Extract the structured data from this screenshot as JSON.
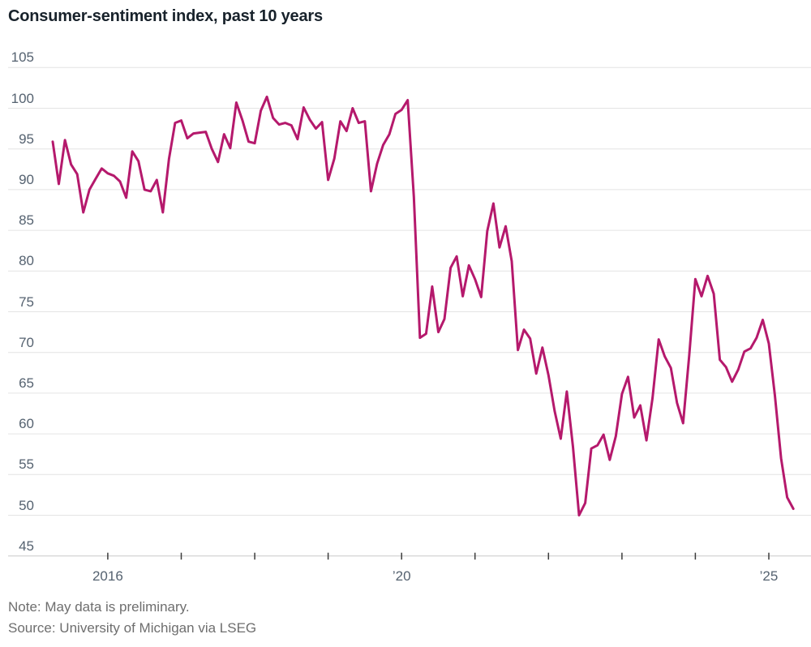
{
  "title": "Consumer-sentiment index, past 10 years",
  "note": "Note: May data is preliminary.",
  "source": "Source: University of Michigan via LSEG",
  "colors": {
    "line": "#b5196c",
    "gridline": "#e4e4e4",
    "axis_line": "#c9c9c9",
    "tick_mark": "#3c3c3c",
    "tick_label": "#556270",
    "title_text": "#18222b",
    "note_text": "#6e6e6e",
    "background": "#ffffff"
  },
  "chart_data": {
    "type": "line",
    "title": "Consumer-sentiment index, past 10 years",
    "series_name": "Consumer-sentiment index",
    "frequency": "monthly",
    "x_start": "2015-04",
    "x_end": "2025-05",
    "note": "May 2025 data is preliminary",
    "ylim": [
      45,
      105
    ],
    "y_ticks": [
      105,
      100,
      95,
      90,
      85,
      80,
      75,
      70,
      65,
      60,
      55,
      50,
      45
    ],
    "x_tick_years": [
      2016,
      2017,
      2018,
      2019,
      2020,
      2021,
      2022,
      2023,
      2024,
      2025
    ],
    "x_tick_labels": [
      {
        "year": 2016,
        "text": "2016"
      },
      {
        "year": 2020,
        "text": "’20"
      },
      {
        "year": 2025,
        "text": "’25"
      }
    ],
    "grid": "horizontal",
    "legend": "none",
    "line_color": "#b5196c",
    "values": [
      95.9,
      90.7,
      96.1,
      93.1,
      91.9,
      87.2,
      90.0,
      91.3,
      92.6,
      92.0,
      91.7,
      91.0,
      89.0,
      94.7,
      93.5,
      90.0,
      89.8,
      91.2,
      87.2,
      93.8,
      98.2,
      98.5,
      96.3,
      96.9,
      97.0,
      97.1,
      95.0,
      93.4,
      96.8,
      95.1,
      100.7,
      98.5,
      95.9,
      95.7,
      99.7,
      101.4,
      98.8,
      98.0,
      98.2,
      97.9,
      96.2,
      100.1,
      98.6,
      97.5,
      98.3,
      91.2,
      93.8,
      98.4,
      97.2,
      100.0,
      98.2,
      98.4,
      89.8,
      93.2,
      95.5,
      96.8,
      99.3,
      99.8,
      101.0,
      89.1,
      71.8,
      72.3,
      78.1,
      72.5,
      74.1,
      80.4,
      81.8,
      76.9,
      80.7,
      79.0,
      76.8,
      84.9,
      88.3,
      82.9,
      85.5,
      81.2,
      70.3,
      72.8,
      71.7,
      67.4,
      70.6,
      67.2,
      62.8,
      59.4,
      65.2,
      58.4,
      50.0,
      51.5,
      58.2,
      58.6,
      59.9,
      56.8,
      59.7,
      64.9,
      67.0,
      62.0,
      63.5,
      59.2,
      64.4,
      71.6,
      69.5,
      68.1,
      63.8,
      61.3,
      69.7,
      79.0,
      76.9,
      79.4,
      77.2,
      69.1,
      68.2,
      66.4,
      67.9,
      70.1,
      70.5,
      71.8,
      74.0,
      71.1,
      64.7,
      57.0,
      52.2,
      50.8
    ]
  }
}
